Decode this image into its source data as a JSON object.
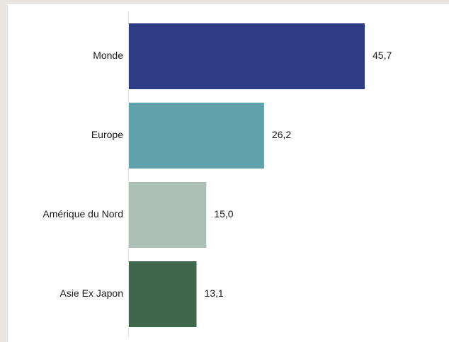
{
  "chart_data": {
    "type": "bar",
    "orientation": "horizontal",
    "categories": [
      "Monde",
      "Europe",
      "Amérique du Nord",
      "Asie Ex Japon"
    ],
    "values": [
      45.7,
      26.2,
      15.0,
      13.1
    ],
    "value_labels": [
      "45,7",
      "26,2",
      "15,0",
      "13,1"
    ],
    "colors": [
      "#2e3d83",
      "#60a2ac",
      "#adc0b8",
      "#40674c"
    ],
    "title": "",
    "xlabel": "",
    "ylabel": "",
    "xlim": [
      0,
      45.7
    ],
    "grid": false,
    "legend": "none"
  }
}
